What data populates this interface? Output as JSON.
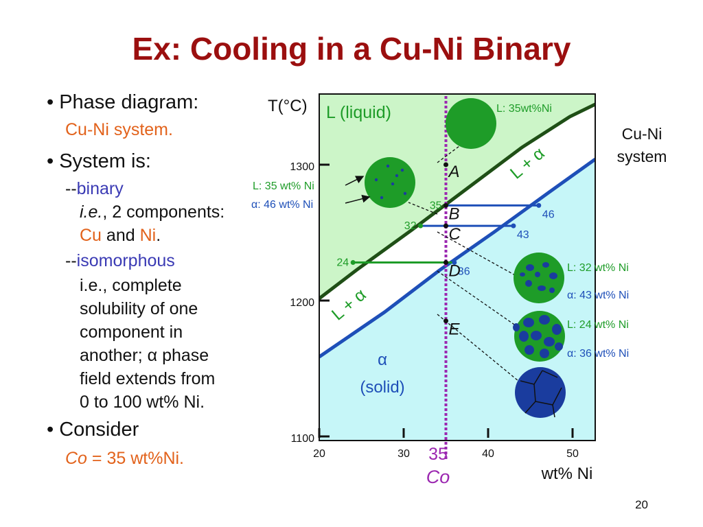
{
  "slide": {
    "title": "Ex:  Cooling in a Cu-Ni Binary",
    "page_number": "20"
  },
  "bullets": {
    "b1_label": "• Phase diagram:",
    "b1_sub": "Cu-Ni system.",
    "b2_label": "• System is:",
    "binary_prefix": "--",
    "binary_word": "binary",
    "ie_prefix": "i.e.",
    "ie_rest": ", 2 components:",
    "cu": "Cu",
    "and": " and ",
    "ni": "Ni",
    "ni_period": ".",
    "iso_prefix": "--",
    "iso_word": "isomorphous",
    "iso_lines": [
      "i.e., complete",
      "solubility of one",
      "component in",
      "another; α phase",
      "field extends from",
      "0 to 100 wt% Ni."
    ],
    "b3_label": "• Consider",
    "co_symbol": "Co",
    "co_value": " = 35 wt%Ni."
  },
  "diagram": {
    "y_axis_label": "T(°C)",
    "x_axis_label": "wt% Ni",
    "system_label_line1": "Cu-Ni",
    "system_label_line2": "system",
    "liquid_label": "L (liquid)",
    "solid_label_line1": "α",
    "solid_label_line2": "(solid)",
    "two_phase_label": "L + α",
    "y_ticks": [
      {
        "label": "1300",
        "value": 1300
      },
      {
        "label": "1200",
        "value": 1200
      },
      {
        "label": "1100",
        "value": 1100
      }
    ],
    "x_ticks": [
      {
        "label": "20",
        "value": 20
      },
      {
        "label": "30",
        "value": 30
      },
      {
        "label": "40",
        "value": 40
      },
      {
        "label": "50",
        "value": 50
      }
    ],
    "co_tick_label": "35",
    "co_symbol": "Co",
    "points": [
      {
        "name": "A",
        "x": 35,
        "t": 1300
      },
      {
        "name": "B",
        "x": 35,
        "t": 1270
      },
      {
        "name": "C",
        "x": 35,
        "t": 1255
      },
      {
        "name": "D",
        "x": 35,
        "t": 1228
      },
      {
        "name": "E",
        "x": 35,
        "t": 1185
      }
    ],
    "tie_lines": [
      {
        "t": 1270,
        "liquid_x": 35,
        "solid_x": 46,
        "liquid_label": "35",
        "solid_label": "46"
      },
      {
        "t": 1255,
        "liquid_x": 32,
        "solid_x": 43,
        "liquid_label": "32",
        "solid_label": "43"
      },
      {
        "t": 1228,
        "liquid_x": 24,
        "solid_x": 36,
        "liquid_label": "24",
        "solid_label": "36"
      }
    ],
    "annotations": {
      "a_liquid": "L: 35wt%Ni",
      "b_liquid": "L: 35 wt% Ni",
      "b_alpha": "α: 46 wt% Ni",
      "c_liquid": "L: 32 wt% Ni",
      "c_alpha": "α: 43 wt% Ni",
      "d_liquid": "L: 24 wt% Ni",
      "d_alpha": "α: 36 wt% Ni"
    },
    "colors": {
      "liquid_region": "#ccf5c8",
      "solid_region": "#c6f6f8",
      "liquidus": "#1f4f16",
      "solidus": "#1e4fb8",
      "co_line": "#9b27b0",
      "liquid_grain": "#1e9c28",
      "alpha_grain": "#1a3c9e"
    }
  }
}
